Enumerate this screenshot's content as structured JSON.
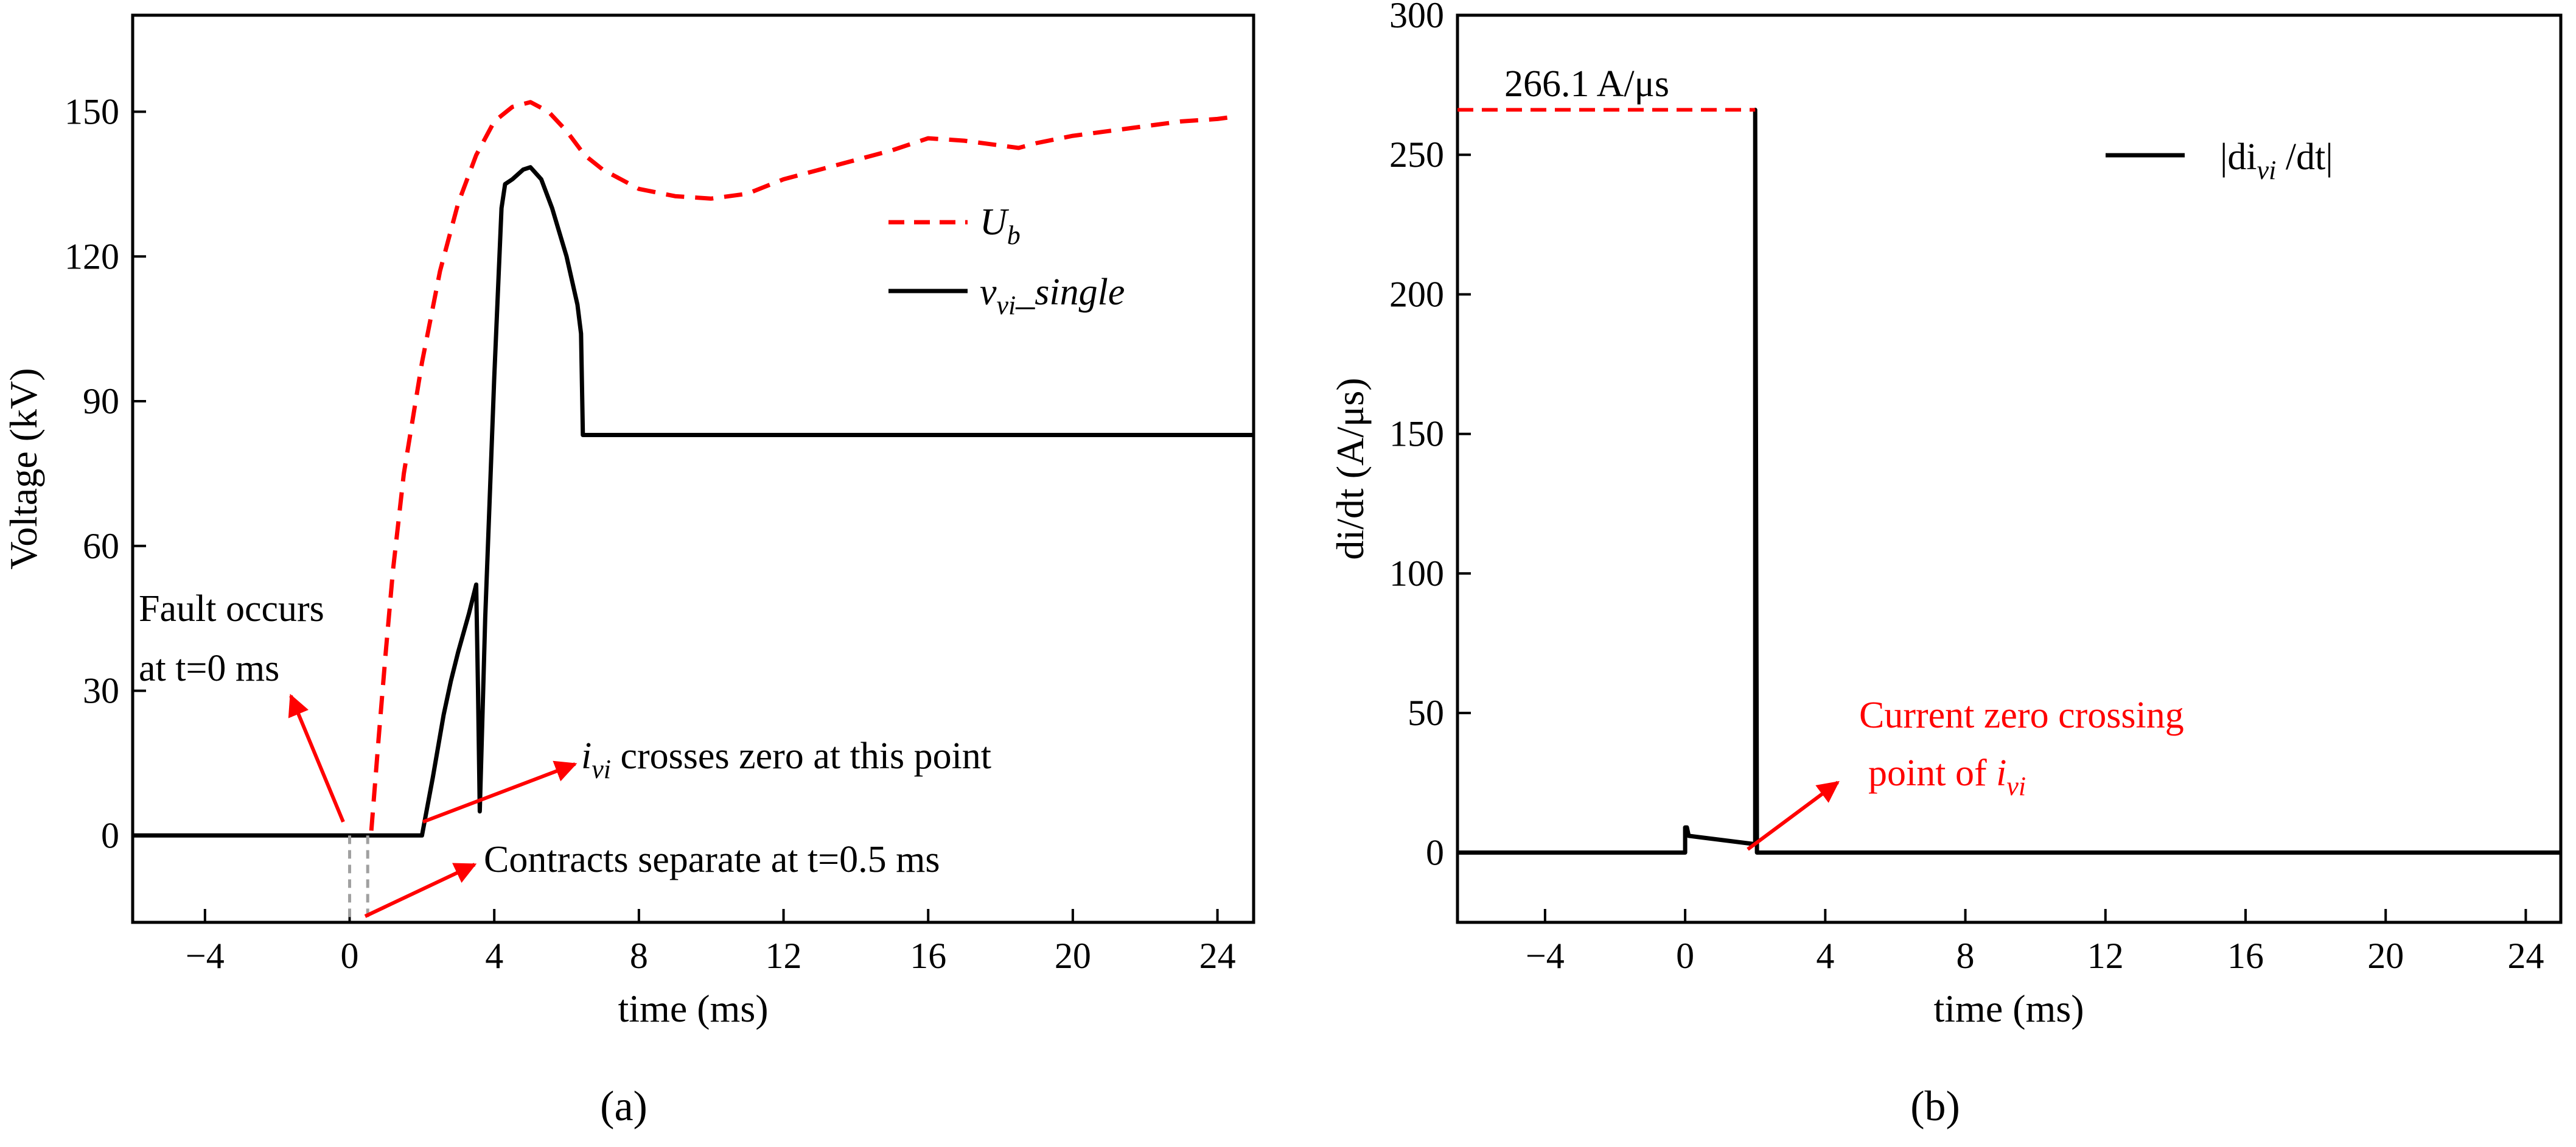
{
  "chart_data": [
    {
      "panel_label": "(a)",
      "type": "line",
      "xlabel": "time (ms)",
      "ylabel": "Voltage (kV)",
      "xlim": [
        -6,
        25
      ],
      "ylim": [
        -18,
        170
      ],
      "xticks": [
        -4,
        0,
        4,
        8,
        12,
        16,
        20,
        24
      ],
      "yticks": [
        0,
        30,
        60,
        90,
        120,
        150
      ],
      "xtick_labels": [
        "−4",
        "0",
        "4",
        "8",
        "12",
        "16",
        "20",
        "24"
      ],
      "ytick_labels": [
        "0",
        "30",
        "60",
        "90",
        "120",
        "150"
      ],
      "series": [
        {
          "name": "U",
          "name_sub": "b",
          "style": "dashed",
          "color": "#ff0000",
          "x": [
            0.6,
            0.8,
            1.0,
            1.2,
            1.5,
            2.0,
            2.5,
            3.0,
            3.5,
            4.0,
            4.5,
            5.0,
            5.5,
            6.0,
            6.5,
            7.0,
            8.0,
            9.0,
            10.0,
            11.0,
            12.0,
            13.0,
            14.0,
            15.0,
            16.0,
            17.0,
            18.0,
            18.5,
            19.0,
            20.0,
            21.0,
            22.0,
            23.0,
            24.0,
            24.5
          ],
          "y": [
            1,
            20,
            38,
            55,
            75,
            98,
            117,
            131,
            141,
            148,
            151,
            152,
            150,
            146,
            141,
            138,
            134,
            132.5,
            132,
            133,
            136,
            138,
            140,
            142,
            144.5,
            144,
            143,
            142.5,
            143.5,
            145,
            146,
            147,
            148,
            148.5,
            149
          ]
        },
        {
          "name": "v",
          "name_sub": "vi",
          "name_suffix": "_single",
          "style": "solid",
          "color": "#000000",
          "x": [
            -6,
            2.0,
            2.3,
            2.6,
            2.8,
            3.0,
            3.3,
            3.5,
            3.55,
            3.6,
            3.75,
            4.0,
            4.2,
            4.3,
            4.5,
            4.8,
            5.0,
            5.3,
            5.6,
            6.0,
            6.3,
            6.4,
            6.45,
            6.5,
            25
          ],
          "y": [
            0,
            0,
            12,
            25,
            32,
            38,
            46,
            52,
            30,
            5,
            45,
            95,
            130,
            135,
            136,
            138,
            138.5,
            136,
            130,
            120,
            110,
            104,
            83,
            83,
            83
          ]
        }
      ],
      "annotations": {
        "fault_line1": "Fault occurs",
        "fault_line2": "at t=0 ms",
        "zero_prefix": "i",
        "zero_sub": "vi",
        "zero_text": " crosses zero at this point",
        "separate_text": "Contracts separate at t=0.5 ms"
      },
      "marker_lines_x": [
        0,
        0.5
      ]
    },
    {
      "panel_label": "(b)",
      "type": "line",
      "xlabel": "time (ms)",
      "ylabel": "di/dt (A/μs)",
      "xlim": [
        -6.5,
        25
      ],
      "ylim": [
        -25,
        300
      ],
      "xticks": [
        -4,
        0,
        4,
        8,
        12,
        16,
        20,
        24
      ],
      "yticks": [
        0,
        50,
        100,
        150,
        200,
        250,
        300
      ],
      "xtick_labels": [
        "−4",
        "0",
        "4",
        "8",
        "12",
        "16",
        "20",
        "24"
      ],
      "ytick_labels": [
        "0",
        "50",
        "100",
        "150",
        "200",
        "250",
        "300"
      ],
      "series": [
        {
          "name": "|di",
          "name_sub": "vi",
          "name_suffix": " /dt|",
          "style": "solid",
          "color": "#000000",
          "x": [
            -6.5,
            0,
            0,
            0.05,
            0.1,
            2.0,
            2.0,
            2.05,
            25
          ],
          "y": [
            0,
            0,
            9,
            9,
            6,
            3,
            266.1,
            0,
            0
          ]
        }
      ],
      "peak_value": 266.1,
      "peak_label": "266.1 A/μs",
      "annotations": {
        "zero_line1": "Current zero crossing",
        "zero_line2_prefix": "point of ",
        "zero_line2_var": "i",
        "zero_line2_sub": "vi"
      }
    }
  ]
}
